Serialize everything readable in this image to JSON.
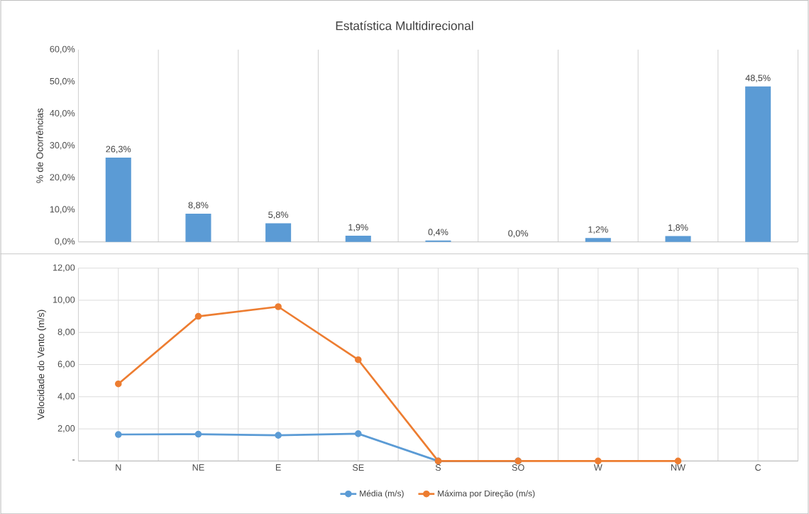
{
  "chart_data": [
    {
      "type": "bar",
      "title": "Estatística Multidirecional",
      "ylabel": "% de Ocorrências",
      "categories": [
        null,
        null,
        null,
        null,
        null,
        null,
        null,
        null,
        null
      ],
      "values": [
        26.3,
        8.8,
        5.8,
        1.9,
        0.4,
        0.0,
        1.2,
        1.8,
        48.5
      ],
      "value_labels": [
        "26,3%",
        "8,8%",
        "5,8%",
        "1,9%",
        "0,4%",
        "0,0%",
        "1,2%",
        "1,8%",
        "48,5%"
      ],
      "color": "#5b9bd5",
      "ylim": [
        0,
        60
      ],
      "yticks": [
        {
          "value": 0,
          "label": "0,0%"
        },
        {
          "value": 10,
          "label": "10,0%"
        },
        {
          "value": 20,
          "label": "20,0%"
        },
        {
          "value": 30,
          "label": "30,0%"
        },
        {
          "value": 40,
          "label": "40,0%"
        },
        {
          "value": 50,
          "label": "50,0%"
        },
        {
          "value": 60,
          "label": "60,0%"
        }
      ],
      "grid": "x",
      "tick_labels": "y"
    },
    {
      "type": "line",
      "ylabel": "Velocidade do Vento (m/s)",
      "categories": [
        "N",
        "NE",
        "E",
        "SE",
        "S",
        "SO",
        "W",
        "NW",
        "C"
      ],
      "series": [
        {
          "name": "Média (m/s)",
          "color": "#5b9bd5",
          "values": [
            1.65,
            1.67,
            1.6,
            1.7,
            0,
            0,
            null,
            null,
            null
          ]
        },
        {
          "name": "Máxima por Direção (m/s)",
          "color": "#ed7d31",
          "values": [
            4.8,
            9.0,
            9.6,
            6.3,
            0,
            0,
            0,
            0,
            null
          ]
        }
      ],
      "ylim": [
        0,
        12
      ],
      "yticks": [
        {
          "value": 0,
          "label": "-"
        },
        {
          "value": 2,
          "label": "2,00"
        },
        {
          "value": 4,
          "label": "4,00"
        },
        {
          "value": 6,
          "label": "6,00"
        },
        {
          "value": 8,
          "label": "8,00"
        },
        {
          "value": 10,
          "label": "10,00"
        },
        {
          "value": 12,
          "label": "12,00"
        }
      ],
      "grid": true,
      "legend": "bottom",
      "marker": "circle",
      "line_style": "solid"
    }
  ]
}
